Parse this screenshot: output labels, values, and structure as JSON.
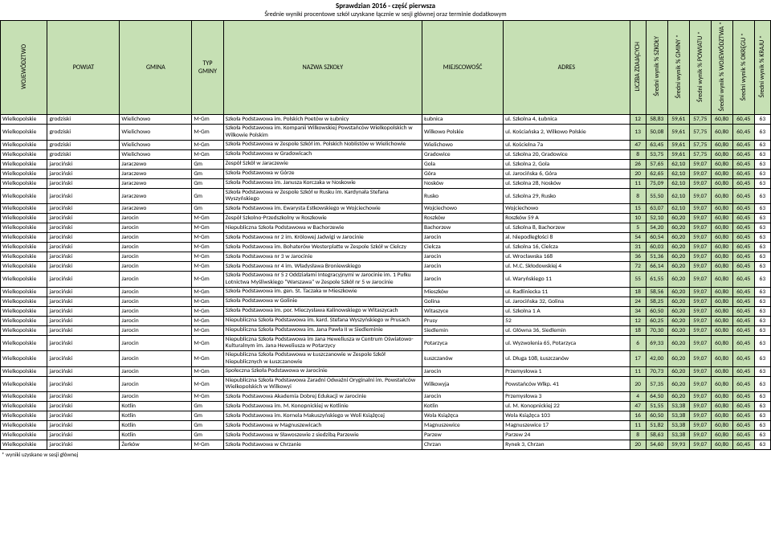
{
  "title": {
    "main": "Sprawdzian 2016 - część pierwsza",
    "sub": "Średnie wyniki procentowe szkół uzyskane łącznie w sesji głównej oraz terminie dodatkowym"
  },
  "columns": {
    "woj": "WOJEWÓDZTWO",
    "powiat": "POWIAT",
    "gmina": "GMINA",
    "typ": "TYP GMINY",
    "nazwa": "NAZWA SZKOŁY",
    "miejsc": "MIEJSCOWOŚĆ",
    "adres": "ADRES",
    "liczba": "LICZBA ZDAJĄCYCH",
    "sw_szkoly": "Średni wynik % SZKOŁY",
    "sw_gminy": "Średni wynik % GMINY *",
    "sw_powiatu": "Średni wynik % POWIATU *",
    "sw_woj": "Średni wynik % WOJEWÓDZTWA *",
    "sw_okregu": "Średni wynik % OKRĘGU *",
    "sw_kraju": "Średni wynik % KRAJU *"
  },
  "widths": {
    "woj": 52,
    "powiat": 80,
    "gmina": 80,
    "typ": 35,
    "nazwa": 220,
    "miejsc": 90,
    "adres": 140,
    "liczba": 18,
    "sw_szkoly": 24,
    "sw_gminy": 24,
    "sw_powiatu": 24,
    "sw_woj": 24,
    "sw_okregu": 24,
    "sw_kraju": 18
  },
  "colors": {
    "header_bg": "#c6e0b4",
    "num_bg": "#c6e0b4"
  },
  "rows": [
    {
      "woj": "Wielkopolskie",
      "powiat": "grodziski",
      "gmina": "Wielichowo",
      "typ": "M-Gm",
      "nazwa": "Szkoła Podstawowa im. Polskich Poetów w Łubnicy",
      "miejsc": "Łubnica",
      "adres": "ul. Szkolna 4, Łubnica",
      "v": [
        "12",
        "58,83",
        "59,61",
        "57,75",
        "60,80",
        "60,45",
        "63"
      ]
    },
    {
      "woj": "Wielkopolskie",
      "powiat": "grodziski",
      "gmina": "Wielichowo",
      "typ": "M-Gm",
      "nazwa": "Szkoła Podstawowa im. Kompanii Wilkowskiej Powstańców Wielkopolskich w Wilkowie Polskim",
      "miejsc": "Wilkowo Polskie",
      "adres": "ul. Kościańska 2, Wilkowo Polskie",
      "v": [
        "13",
        "50,08",
        "59,61",
        "57,75",
        "60,80",
        "60,45",
        "63"
      ]
    },
    {
      "woj": "Wielkopolskie",
      "powiat": "grodziski",
      "gmina": "Wielichowo",
      "typ": "M-Gm",
      "nazwa": "Szkoła Podstawowa w Zespole Szkół im. Polskich Noblistów w Wielichowie",
      "miejsc": "Wielichowo",
      "adres": "ul. Kościelna 7a",
      "v": [
        "47",
        "63,45",
        "59,61",
        "57,75",
        "60,80",
        "60,45",
        "63"
      ]
    },
    {
      "woj": "Wielkopolskie",
      "powiat": "grodziski",
      "gmina": "Wielichowo",
      "typ": "M-Gm",
      "nazwa": "Szkoła Podstawowa w Gradowicach",
      "miejsc": "Gradowice",
      "adres": "ul. Szkolna 20, Gradowice",
      "v": [
        "8",
        "53,75",
        "59,61",
        "57,75",
        "60,80",
        "60,45",
        "63"
      ]
    },
    {
      "woj": "Wielkopolskie",
      "powiat": "jarociński",
      "gmina": "Jaraczewo",
      "typ": "Gm",
      "nazwa": "Zespół Szkół w Jaraczewie",
      "miejsc": "Gola",
      "adres": "ul. Szkolna 2, Gola",
      "v": [
        "26",
        "57,65",
        "62,10",
        "59,07",
        "60,80",
        "60,45",
        "63"
      ]
    },
    {
      "woj": "Wielkopolskie",
      "powiat": "jarociński",
      "gmina": "Jaraczewo",
      "typ": "Gm",
      "nazwa": "Szkoła Podstawowa w Górze",
      "miejsc": "Góra",
      "adres": "ul. Jarocińska 6, Góra",
      "v": [
        "20",
        "62,65",
        "62,10",
        "59,07",
        "60,80",
        "60,45",
        "63"
      ]
    },
    {
      "woj": "Wielkopolskie",
      "powiat": "jarociński",
      "gmina": "Jaraczewo",
      "typ": "Gm",
      "nazwa": "Szkoła Podstawowa im. Janusza Korczaka w Noskowie",
      "miejsc": "Nosków",
      "adres": "ul. Szkolna 28, Nosków",
      "v": [
        "11",
        "75,09",
        "62,10",
        "59,07",
        "60,80",
        "60,45",
        "63"
      ]
    },
    {
      "woj": "Wielkopolskie",
      "powiat": "jarociński",
      "gmina": "Jaraczewo",
      "typ": "Gm",
      "nazwa": "Szkoła Podstawowa w Zespole Szkół w Rusku im. Kardynała Stefana Wyszyńskiego",
      "miejsc": "Rusko",
      "adres": "ul. Szkolna 29, Rusko",
      "v": [
        "8",
        "55,50",
        "62,10",
        "59,07",
        "60,80",
        "60,45",
        "63"
      ]
    },
    {
      "woj": "Wielkopolskie",
      "powiat": "jarociński",
      "gmina": "Jaraczewo",
      "typ": "Gm",
      "nazwa": "Szkoła Podstawowa im. Ewarysta Estkowskiego w Wojciechowie",
      "miejsc": "Wojciechowo",
      "adres": "Wojciechowo",
      "v": [
        "15",
        "63,07",
        "62,10",
        "59,07",
        "60,80",
        "60,45",
        "63"
      ]
    },
    {
      "woj": "Wielkopolskie",
      "powiat": "jarociński",
      "gmina": "Jarocin",
      "typ": "M-Gm",
      "nazwa": "Zespół Szkolno-Przedszkolny w Roszkowie",
      "miejsc": "Roszków",
      "adres": "Roszków 59 A",
      "v": [
        "10",
        "52,10",
        "60,20",
        "59,07",
        "60,80",
        "60,45",
        "63"
      ]
    },
    {
      "woj": "Wielkopolskie",
      "powiat": "jarociński",
      "gmina": "Jarocin",
      "typ": "M-Gm",
      "nazwa": "Niepubliczna Szkoła Podstawowa w Bachorzewie",
      "miejsc": "Bachorzew",
      "adres": "ul. Szkolna 8, Bachorzew",
      "v": [
        "5",
        "54,20",
        "60,20",
        "59,07",
        "60,80",
        "60,45",
        "63"
      ]
    },
    {
      "woj": "Wielkopolskie",
      "powiat": "jarociński",
      "gmina": "Jarocin",
      "typ": "M-Gm",
      "nazwa": "Szkoła Podstawowa nr 2 im. Królowej Jadwigi w Jarocinie",
      "miejsc": "Jarocin",
      "adres": "al. Niepodległości 8",
      "v": [
        "54",
        "60,54",
        "60,20",
        "59,07",
        "60,80",
        "60,45",
        "63"
      ]
    },
    {
      "woj": "Wielkopolskie",
      "powiat": "jarociński",
      "gmina": "Jarocin",
      "typ": "M-Gm",
      "nazwa": "Szkoła Podstawowa im. Bohaterów Westerplatte w Zespole Szkół w Cielczy",
      "miejsc": "Cielcza",
      "adres": "ul. Szkolna 16, Cielcza",
      "v": [
        "31",
        "60,03",
        "60,20",
        "59,07",
        "60,80",
        "60,45",
        "63"
      ]
    },
    {
      "woj": "Wielkopolskie",
      "powiat": "jarociński",
      "gmina": "Jarocin",
      "typ": "M-Gm",
      "nazwa": "Szkoła Podstawowa nr 3 w Jarocinie",
      "miejsc": "Jarocin",
      "adres": "ul. Wrocławska 168",
      "v": [
        "36",
        "51,36",
        "60,20",
        "59,07",
        "60,80",
        "60,45",
        "63"
      ]
    },
    {
      "woj": "Wielkopolskie",
      "powiat": "jarociński",
      "gmina": "Jarocin",
      "typ": "M-Gm",
      "nazwa": "Szkoła Podstawowa nr 4 im. Władysława Broniewskiego",
      "miejsc": "Jarocin",
      "adres": "ul. M.C. Skłodowskiej 4",
      "v": [
        "72",
        "66,14",
        "60,20",
        "59,07",
        "60,80",
        "60,45",
        "63"
      ]
    },
    {
      "woj": "Wielkopolskie",
      "powiat": "jarociński",
      "gmina": "Jarocin",
      "typ": "M-Gm",
      "nazwa": "Szkoła Podstawowa nr 5 z Oddziałami Integracyjnymi w Jarocinie im. 1 Pułku Lotnictwa Myśliwskiego \"Warszawa\" w Zespole Szkół nr 5 w Jarocinie",
      "miejsc": "Jarocin",
      "adres": "ul. Waryńskiego 11",
      "v": [
        "55",
        "61,55",
        "60,20",
        "59,07",
        "60,80",
        "60,45",
        "63"
      ]
    },
    {
      "woj": "Wielkopolskie",
      "powiat": "jarociński",
      "gmina": "Jarocin",
      "typ": "M-Gm",
      "nazwa": "Szkoła Podstawowa im. gen. St. Taczaka w Mieszkowie",
      "miejsc": "Mieszków",
      "adres": "ul. Radliniecka 11",
      "v": [
        "18",
        "58,56",
        "60,20",
        "59,07",
        "60,80",
        "60,45",
        "63"
      ]
    },
    {
      "woj": "Wielkopolskie",
      "powiat": "jarociński",
      "gmina": "Jarocin",
      "typ": "M-Gm",
      "nazwa": "Szkoła Podstawowa w Golinie",
      "miejsc": "Golina",
      "adres": "ul. Jarocińska 32, Golina",
      "v": [
        "24",
        "58,25",
        "60,20",
        "59,07",
        "60,80",
        "60,45",
        "63"
      ]
    },
    {
      "woj": "Wielkopolskie",
      "powiat": "jarociński",
      "gmina": "Jarocin",
      "typ": "M-Gm",
      "nazwa": "Szkoła Podstawowa im. por. Mieczysława Kalinowskiego w Witaszycach",
      "miejsc": "Witaszyce",
      "adres": "ul. Szkolna 1 A",
      "v": [
        "34",
        "60,50",
        "60,20",
        "59,07",
        "60,80",
        "60,45",
        "63"
      ]
    },
    {
      "woj": "Wielkopolskie",
      "powiat": "jarociński",
      "gmina": "Jarocin",
      "typ": "M-Gm",
      "nazwa": "Niepubliczna Szkoła Podstawowa im. kard. Stefana Wyszyńskiego w Prusach",
      "miejsc": "Prusy",
      "adres": "52",
      "v": [
        "12",
        "60,25",
        "60,20",
        "59,07",
        "60,80",
        "60,45",
        "63"
      ]
    },
    {
      "woj": "Wielkopolskie",
      "powiat": "jarociński",
      "gmina": "Jarocin",
      "typ": "M-Gm",
      "nazwa": "Niepubliczna Szkoła Podstawowa im. Jana Pawła II w Siedleminie",
      "miejsc": "Siedlemin",
      "adres": "ul. Główna 36, Siedlemin",
      "v": [
        "18",
        "70,30",
        "60,20",
        "59,07",
        "60,80",
        "60,45",
        "63"
      ]
    },
    {
      "woj": "Wielkopolskie",
      "powiat": "jarociński",
      "gmina": "Jarocin",
      "typ": "M-Gm",
      "nazwa": "Niepubliczna Szkoła Podstawowa im Jana Heweliusza w Centrum Oświatowo-Kulturalnym im. Jana Heweliusza w Potarzycy",
      "miejsc": "Potarzyca",
      "adres": "ul. Wyzwolenia 65, Potarzyca",
      "v": [
        "6",
        "69,33",
        "60,20",
        "59,07",
        "60,80",
        "60,45",
        "63"
      ]
    },
    {
      "woj": "Wielkopolskie",
      "powiat": "jarociński",
      "gmina": "Jarocin",
      "typ": "M-Gm",
      "nazwa": "Niepubliczna Szkoła Podstawowa w Łuszczanowie w Zespole Szkół Niepublicznych w Łuszczanowie",
      "miejsc": "Łuszczanów",
      "adres": "ul. Długa 108, Łuszczanów",
      "v": [
        "17",
        "42,00",
        "60,20",
        "59,07",
        "60,80",
        "60,45",
        "63"
      ]
    },
    {
      "woj": "Wielkopolskie",
      "powiat": "jarociński",
      "gmina": "Jarocin",
      "typ": "M-Gm",
      "nazwa": "Społeczna Szkoła Podstawowa w Jarocinie",
      "miejsc": "Jarocin",
      "adres": "Przemysłowa 1",
      "v": [
        "11",
        "70,73",
        "60,20",
        "59,07",
        "60,80",
        "60,45",
        "63"
      ]
    },
    {
      "woj": "Wielkopolskie",
      "powiat": "jarociński",
      "gmina": "Jarocin",
      "typ": "M-Gm",
      "nazwa": "Niepubliczna Szkoła Podstawowa Zaradni Odważni Oryginalni im. Powstańców Wielkopolskich w Wilkowyi",
      "miejsc": "Wilkowyja",
      "adres": "Powstańców Wlkp. 41",
      "v": [
        "20",
        "57,35",
        "60,20",
        "59,07",
        "60,80",
        "60,45",
        "63"
      ]
    },
    {
      "woj": "Wielkopolskie",
      "powiat": "jarociński",
      "gmina": "Jarocin",
      "typ": "M-Gm",
      "nazwa": "Szkoła Podstawowa Akademia Dobrej Edukacji w Jarocinie",
      "miejsc": "Jarocin",
      "adres": "Przemysłowa 3",
      "v": [
        "4",
        "64,50",
        "60,20",
        "59,07",
        "60,80",
        "60,45",
        "63"
      ]
    },
    {
      "woj": "Wielkopolskie",
      "powiat": "jarociński",
      "gmina": "Kotlin",
      "typ": "Gm",
      "nazwa": "Szkoła Podstawowa im. M. Konopnickiej w Kotlinie",
      "miejsc": "Kotlin",
      "adres": "ul. M. Konopnickiej 22",
      "v": [
        "47",
        "51,55",
        "53,38",
        "59,07",
        "60,80",
        "60,45",
        "63"
      ]
    },
    {
      "woj": "Wielkopolskie",
      "powiat": "jarociński",
      "gmina": "Kotlin",
      "typ": "Gm",
      "nazwa": "Szkoła Podstawowa im. Kornela Makuszyńskiego w Woli Książęcej",
      "miejsc": "Wola Książęca",
      "adres": "Wola Książęca 103",
      "v": [
        "16",
        "60,50",
        "53,38",
        "59,07",
        "60,80",
        "60,45",
        "63"
      ]
    },
    {
      "woj": "Wielkopolskie",
      "powiat": "jarociński",
      "gmina": "Kotlin",
      "typ": "Gm",
      "nazwa": "Szkoła Podstawowa w Magnuszewicach",
      "miejsc": "Magnuszewice",
      "adres": "Magnuszewice 17",
      "v": [
        "11",
        "51,82",
        "53,38",
        "59,07",
        "60,80",
        "60,45",
        "63"
      ]
    },
    {
      "woj": "Wielkopolskie",
      "powiat": "jarociński",
      "gmina": "Kotlin",
      "typ": "Gm",
      "nazwa": "Szkoła Podstawowa w Sławoszewie z siedzibą Parzewie",
      "miejsc": "Parzew",
      "adres": "Parzew 24",
      "v": [
        "8",
        "58,63",
        "53,38",
        "59,07",
        "60,80",
        "60,45",
        "63"
      ]
    },
    {
      "woj": "Wielkopolskie",
      "powiat": "jarociński",
      "gmina": "Żerków",
      "typ": "M-Gm",
      "nazwa": "Szkoła Podstawowa w Chrzanie",
      "miejsc": "Chrzan",
      "adres": "Rynek 3, Chrzan",
      "v": [
        "20",
        "54,60",
        "59,93",
        "59,07",
        "60,80",
        "60,45",
        "63"
      ]
    }
  ],
  "footnote": "* wyniki uzyskane w sesji głównej"
}
